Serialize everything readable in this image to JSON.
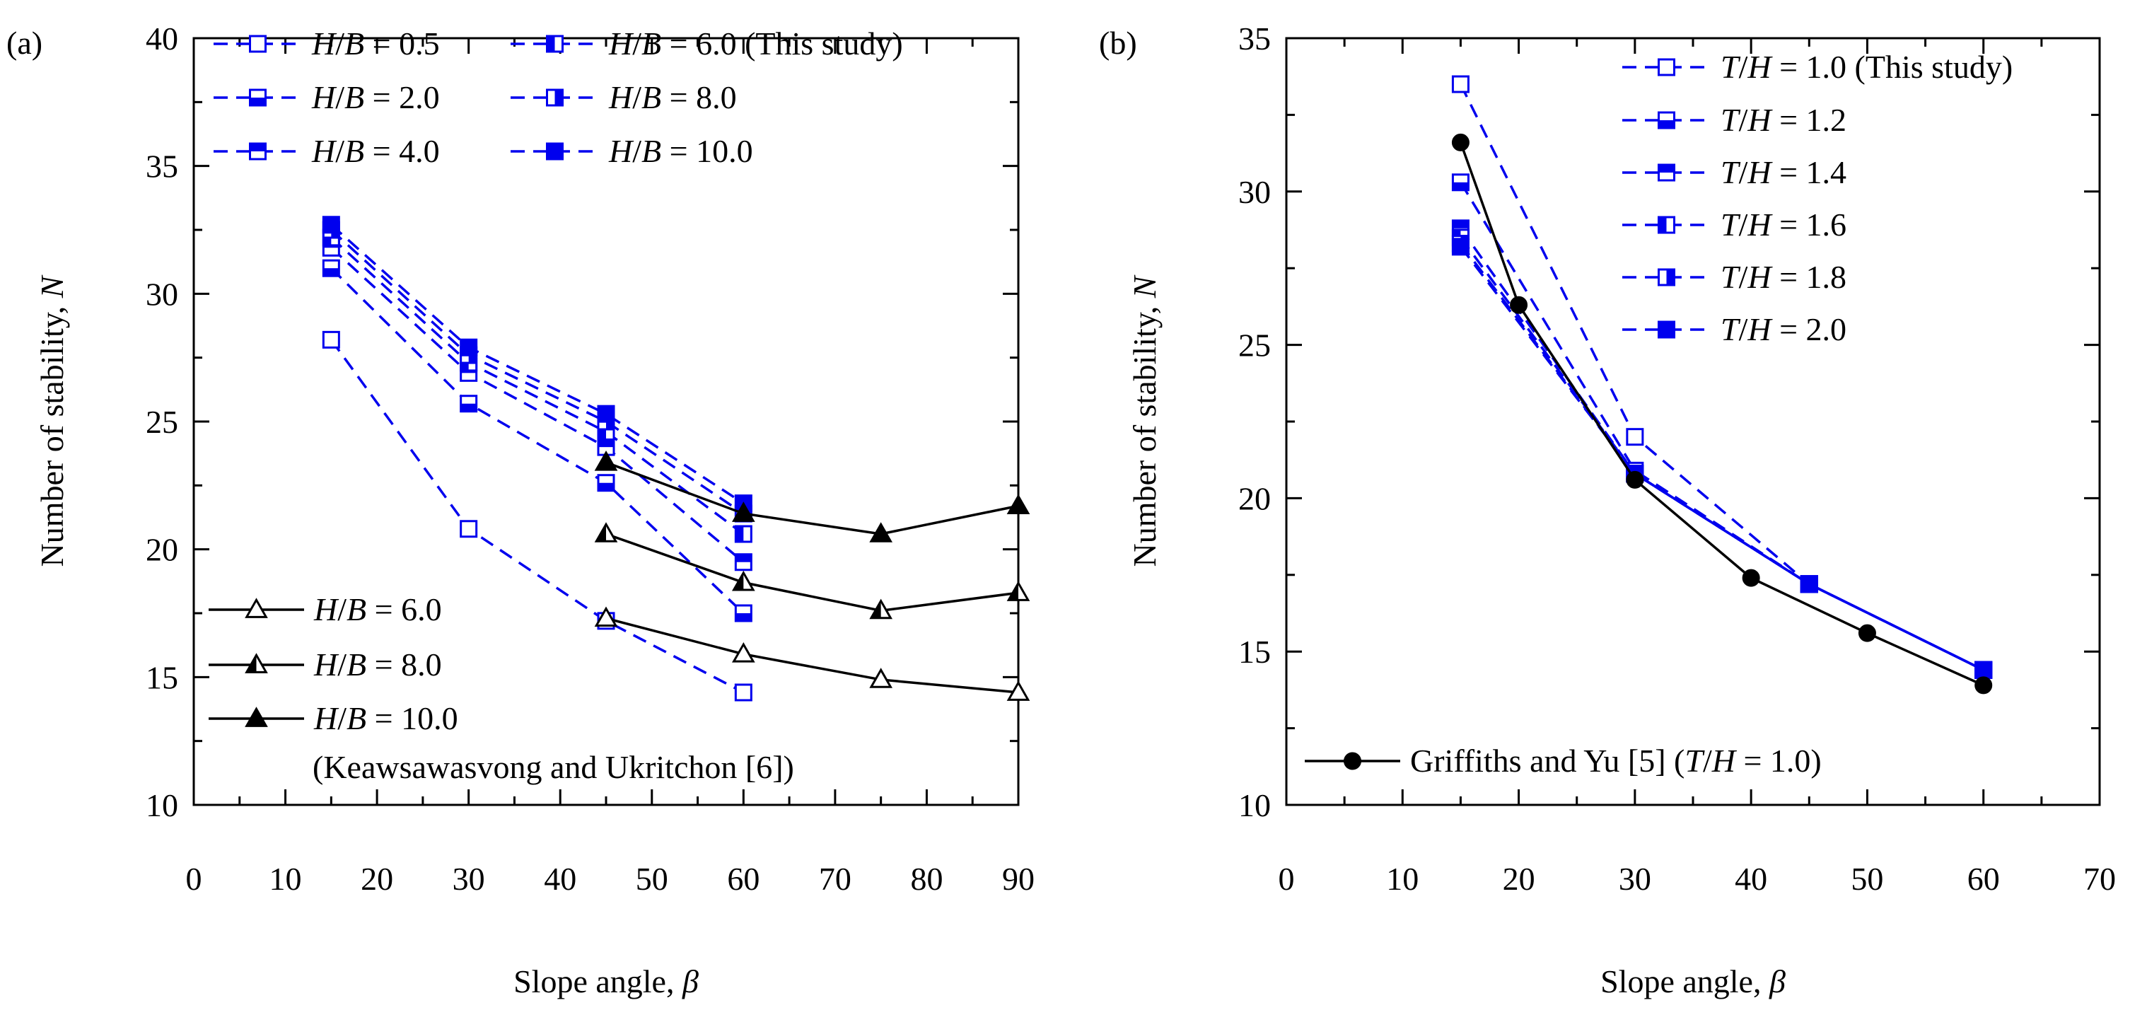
{
  "chart_data": [
    {
      "type": "line",
      "panel_label": "(a)",
      "xlabel": "Slope angle, ",
      "xlabel_symbol": "β",
      "ylabel": "Number of stability, ",
      "ylabel_symbol": "N",
      "xlim": [
        0,
        90
      ],
      "ylim": [
        10,
        40
      ],
      "xticks": [
        0,
        10,
        20,
        30,
        40,
        50,
        60,
        70,
        80,
        90
      ],
      "yticks": [
        10,
        15,
        20,
        25,
        30,
        35,
        40
      ],
      "legend_position": "top-left",
      "series": [
        {
          "name_var": "H/B",
          "name_val": " = 0.5",
          "group": "This study",
          "color": "#0000ee",
          "dash": true,
          "marker": "square-open",
          "x": [
            15,
            30,
            45,
            60
          ],
          "y": [
            28.2,
            20.8,
            17.2,
            14.4
          ]
        },
        {
          "name_var": "H/B",
          "name_val": " = 2.0",
          "group": "This study",
          "color": "#0000ee",
          "dash": true,
          "marker": "square-bottom",
          "x": [
            15,
            30,
            45,
            60
          ],
          "y": [
            31.0,
            25.7,
            22.6,
            17.5
          ]
        },
        {
          "name_var": "H/B",
          "name_val": " = 4.0",
          "group": "This study",
          "color": "#0000ee",
          "dash": true,
          "marker": "square-top",
          "x": [
            15,
            30,
            45,
            60
          ],
          "y": [
            31.8,
            26.9,
            24.0,
            19.5
          ]
        },
        {
          "name_var": "H/B",
          "name_val": " = 6.0 (This study)",
          "group": "This study",
          "color": "#0000ee",
          "dash": true,
          "marker": "square-left",
          "x": [
            15,
            30,
            45,
            60
          ],
          "y": [
            32.2,
            27.3,
            24.6,
            20.6
          ]
        },
        {
          "name_var": "H/B",
          "name_val": " = 8.0",
          "group": "This study",
          "color": "#0000ee",
          "dash": true,
          "marker": "square-right",
          "x": [
            15,
            30,
            45,
            60
          ],
          "y": [
            32.5,
            27.6,
            25.0,
            21.4
          ]
        },
        {
          "name_var": "H/B",
          "name_val": " = 10.0",
          "group": "This study",
          "color": "#0000ee",
          "dash": true,
          "marker": "square-filled",
          "x": [
            15,
            30,
            45,
            60
          ],
          "y": [
            32.7,
            27.9,
            25.3,
            21.8
          ]
        },
        {
          "name_var": "H/B",
          "name_val": " = 6.0",
          "group": "Keawsawasvong and Ukritchon [6]",
          "color": "#000000",
          "dash": false,
          "marker": "triangle-open",
          "x": [
            45,
            60,
            75,
            90
          ],
          "y": [
            17.3,
            15.9,
            14.9,
            14.4
          ]
        },
        {
          "name_var": "H/B",
          "name_val": " = 8.0",
          "group": "Keawsawasvong and Ukritchon [6]",
          "color": "#000000",
          "dash": false,
          "marker": "triangle-half",
          "x": [
            45,
            60,
            75,
            90
          ],
          "y": [
            20.6,
            18.7,
            17.6,
            18.3
          ]
        },
        {
          "name_var": "H/B",
          "name_val": " = 10.0",
          "group": "Keawsawasvong and Ukritchon [6]",
          "color": "#000000",
          "dash": false,
          "marker": "triangle-filled",
          "x": [
            45,
            60,
            75,
            90
          ],
          "y": [
            23.4,
            21.4,
            20.6,
            21.7
          ]
        }
      ],
      "annotation": "(Keawsawasvong and Ukritchon [6])"
    },
    {
      "type": "line",
      "panel_label": "(b)",
      "xlabel": "Slope angle, ",
      "xlabel_symbol": "β",
      "ylabel": "Number of stability, ",
      "ylabel_symbol": "N",
      "xlim": [
        0,
        70
      ],
      "ylim": [
        10,
        35
      ],
      "xticks": [
        0,
        10,
        20,
        30,
        40,
        50,
        60,
        70
      ],
      "yticks": [
        10,
        15,
        20,
        25,
        30,
        35
      ],
      "legend_position": "top-right",
      "series": [
        {
          "name_var": "T/H",
          "name_val": " = 1.0 (This study)",
          "group": "This study",
          "color": "#0000ee",
          "dash": true,
          "marker": "square-open",
          "x": [
            15,
            30,
            45,
            60
          ],
          "y": [
            33.5,
            22.0,
            17.2,
            14.4
          ]
        },
        {
          "name_var": "T/H",
          "name_val": " = 1.2",
          "group": "This study",
          "color": "#0000ee",
          "dash": true,
          "marker": "square-bottom",
          "x": [
            15,
            30,
            45,
            60
          ],
          "y": [
            30.3,
            20.9,
            17.2,
            14.4
          ]
        },
        {
          "name_var": "T/H",
          "name_val": " = 1.4",
          "group": "This study",
          "color": "#0000ee",
          "dash": true,
          "marker": "square-top",
          "x": [
            15,
            30,
            45,
            60
          ],
          "y": [
            28.8,
            20.8,
            17.2,
            14.4
          ]
        },
        {
          "name_var": "T/H",
          "name_val": " = 1.6",
          "group": "This study",
          "color": "#0000ee",
          "dash": true,
          "marker": "square-left",
          "x": [
            15,
            30,
            45,
            60
          ],
          "y": [
            28.5,
            20.8,
            17.2,
            14.4
          ]
        },
        {
          "name_var": "T/H",
          "name_val": " = 1.8",
          "group": "This study",
          "color": "#0000ee",
          "dash": true,
          "marker": "square-right",
          "x": [
            15,
            30,
            45,
            60
          ],
          "y": [
            28.3,
            20.8,
            17.2,
            14.4
          ]
        },
        {
          "name_var": "T/H",
          "name_val": " = 2.0",
          "group": "This study",
          "color": "#0000ee",
          "dash": true,
          "marker": "square-filled",
          "x": [
            15,
            30,
            45,
            60
          ],
          "y": [
            28.2,
            20.8,
            17.2,
            14.4
          ]
        },
        {
          "name_var": "",
          "name_val": "Griffiths and Yu [5] (T/H = 1.0)",
          "group": "Griffiths and Yu [5]",
          "color": "#000000",
          "dash": false,
          "marker": "circle-filled",
          "x": [
            15,
            20,
            30,
            40,
            50,
            60
          ],
          "y": [
            31.6,
            26.3,
            20.6,
            17.4,
            15.6,
            13.9
          ]
        }
      ]
    }
  ]
}
